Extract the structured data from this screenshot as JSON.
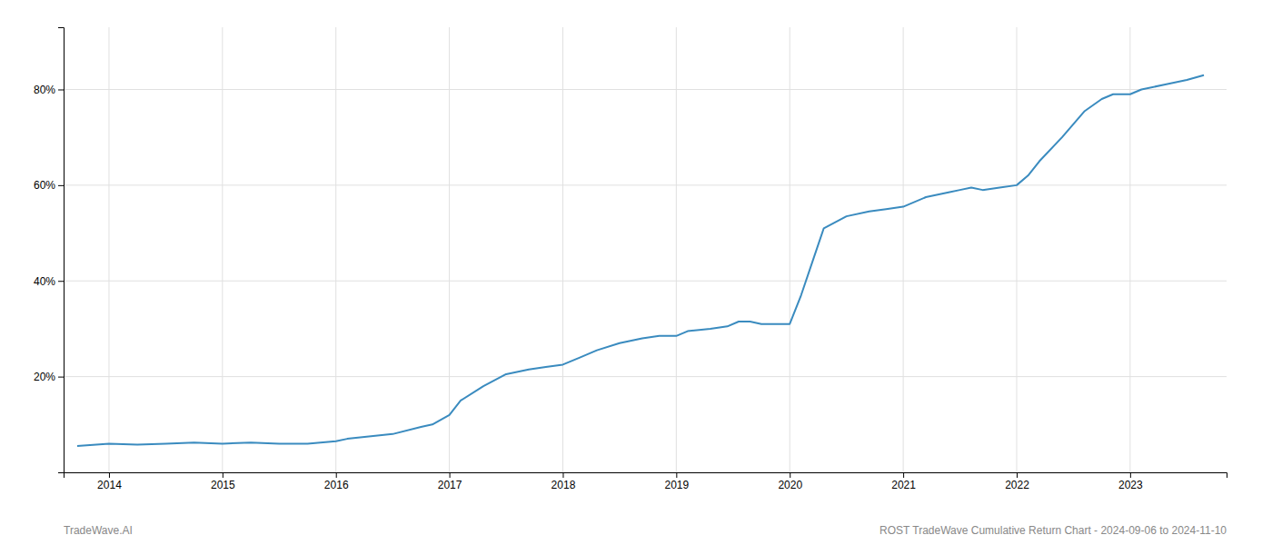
{
  "chart_data": {
    "type": "line",
    "x": [
      2013.72,
      2014.0,
      2014.25,
      2014.5,
      2014.75,
      2015.0,
      2015.25,
      2015.5,
      2015.75,
      2016.0,
      2016.1,
      2016.5,
      2016.75,
      2016.85,
      2017.0,
      2017.1,
      2017.3,
      2017.5,
      2017.7,
      2017.85,
      2018.0,
      2018.15,
      2018.3,
      2018.5,
      2018.7,
      2018.85,
      2019.0,
      2019.1,
      2019.3,
      2019.45,
      2019.55,
      2019.65,
      2019.75,
      2020.0,
      2020.1,
      2020.2,
      2020.3,
      2020.5,
      2020.7,
      2020.85,
      2021.0,
      2021.2,
      2021.4,
      2021.5,
      2021.6,
      2021.7,
      2021.85,
      2022.0,
      2022.1,
      2022.2,
      2022.4,
      2022.6,
      2022.75,
      2022.85,
      2023.0,
      2023.1,
      2023.3,
      2023.5,
      2023.65
    ],
    "values": [
      5.5,
      6.0,
      5.8,
      6.0,
      6.2,
      6.0,
      6.2,
      6.0,
      6.0,
      6.5,
      7.0,
      8.0,
      9.5,
      10.0,
      12.0,
      15.0,
      18.0,
      20.5,
      21.5,
      22.0,
      22.5,
      24.0,
      25.5,
      27.0,
      28.0,
      28.5,
      28.5,
      29.5,
      30.0,
      30.5,
      31.5,
      31.5,
      31.0,
      31.0,
      37.0,
      44.0,
      51.0,
      53.5,
      54.5,
      55.0,
      55.5,
      57.5,
      58.5,
      59.0,
      59.5,
      59.0,
      59.5,
      60.0,
      62.0,
      65.0,
      70.0,
      75.5,
      78.0,
      79.0,
      79.0,
      80.0,
      81.0,
      82.0,
      83.0
    ],
    "color": "#3a8bbf",
    "xlim": [
      2013.6,
      2023.85
    ],
    "ylim": [
      0,
      93
    ],
    "xticks": [
      2014,
      2015,
      2016,
      2017,
      2018,
      2019,
      2020,
      2021,
      2022,
      2023
    ],
    "yticks": [
      {
        "value": 20,
        "label": "20%"
      },
      {
        "value": 40,
        "label": "40%"
      },
      {
        "value": 60,
        "label": "60%"
      },
      {
        "value": 80,
        "label": "80%"
      }
    ],
    "grid": true,
    "annotations": [
      "TradeWave.AI",
      "ROST TradeWave Cumulative Return Chart - 2024-09-06 to 2024-11-10"
    ]
  }
}
